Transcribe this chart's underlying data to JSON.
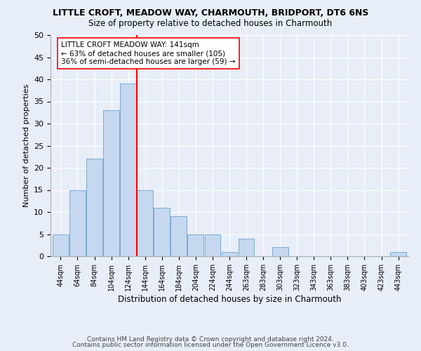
{
  "title1": "LITTLE CROFT, MEADOW WAY, CHARMOUTH, BRIDPORT, DT6 6NS",
  "title2": "Size of property relative to detached houses in Charmouth",
  "xlabel": "Distribution of detached houses by size in Charmouth",
  "ylabel": "Number of detached properties",
  "categories": [
    "44sqm",
    "64sqm",
    "84sqm",
    "104sqm",
    "124sqm",
    "144sqm",
    "164sqm",
    "184sqm",
    "204sqm",
    "224sqm",
    "244sqm",
    "263sqm",
    "283sqm",
    "303sqm",
    "323sqm",
    "343sqm",
    "363sqm",
    "383sqm",
    "403sqm",
    "423sqm",
    "443sqm"
  ],
  "values": [
    5,
    15,
    22,
    33,
    39,
    15,
    11,
    9,
    5,
    5,
    1,
    4,
    0,
    2,
    0,
    0,
    0,
    0,
    0,
    0,
    1
  ],
  "bar_color": "#c5d8f0",
  "bar_edge_color": "#7aaad0",
  "red_line_index": 5,
  "annotation_text": "LITTLE CROFT MEADOW WAY: 141sqm\n← 63% of detached houses are smaller (105)\n36% of semi-detached houses are larger (59) →",
  "ylim": [
    0,
    50
  ],
  "yticks": [
    0,
    5,
    10,
    15,
    20,
    25,
    30,
    35,
    40,
    45,
    50
  ],
  "footer1": "Contains HM Land Registry data © Crown copyright and database right 2024.",
  "footer2": "Contains public sector information licensed under the Open Government Licence v3.0.",
  "bg_color": "#e8eef8",
  "plot_bg_color": "#e8eef8"
}
